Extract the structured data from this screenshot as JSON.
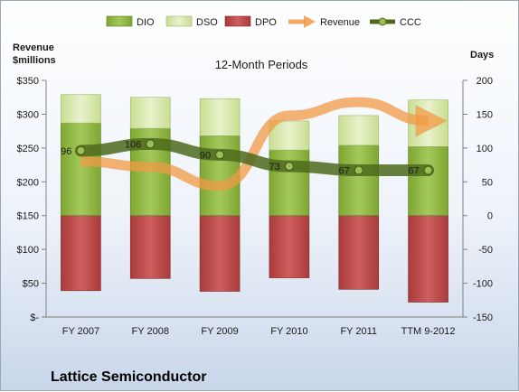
{
  "chart_data": {
    "type": "bar",
    "subtitle": "12-Month Periods",
    "company": "Lattice Semiconductor",
    "left_axis": {
      "label_line1": "Revenue",
      "label_line2": "$millions",
      "range": [
        0,
        350
      ],
      "ticks": [
        "$-",
        "$50",
        "$100",
        "$150",
        "$200",
        "$250",
        "$300",
        "$350"
      ]
    },
    "right_axis": {
      "label": "Days",
      "range": [
        -150,
        200
      ],
      "ticks": [
        "-150",
        "-100",
        "-50",
        "0",
        "50",
        "100",
        "150",
        "200"
      ]
    },
    "categories": [
      "FY 2007",
      "FY 2008",
      "FY 2009",
      "FY 2010",
      "FY 2011",
      "TTM 9-2012"
    ],
    "legend": [
      "DIO",
      "DSO",
      "DPO",
      "Revenue",
      "CCC"
    ],
    "series": [
      {
        "name": "DIO",
        "axis": "right",
        "values": [
          137,
          129,
          118,
          97,
          104,
          102
        ],
        "color": "#8db540"
      },
      {
        "name": "DSO",
        "axis": "right",
        "values": [
          42,
          46,
          55,
          43,
          44,
          69
        ],
        "color": "#d6e8a8"
      },
      {
        "name": "DPO",
        "axis": "right",
        "values": [
          -111,
          -93,
          -112,
          -92,
          -109,
          -128
        ],
        "color": "#b84545"
      },
      {
        "name": "Revenue",
        "axis": "left",
        "values": [
          230,
          222,
          194,
          298,
          318,
          290
        ],
        "color": "#f19a45"
      },
      {
        "name": "CCC",
        "axis": "right",
        "values": [
          96,
          106,
          90,
          73,
          67,
          67
        ],
        "labels": [
          "96",
          "106",
          "90",
          "73",
          "67",
          "67"
        ],
        "color": "#4d6a1c"
      }
    ],
    "grid": false,
    "legend_position": "top"
  }
}
